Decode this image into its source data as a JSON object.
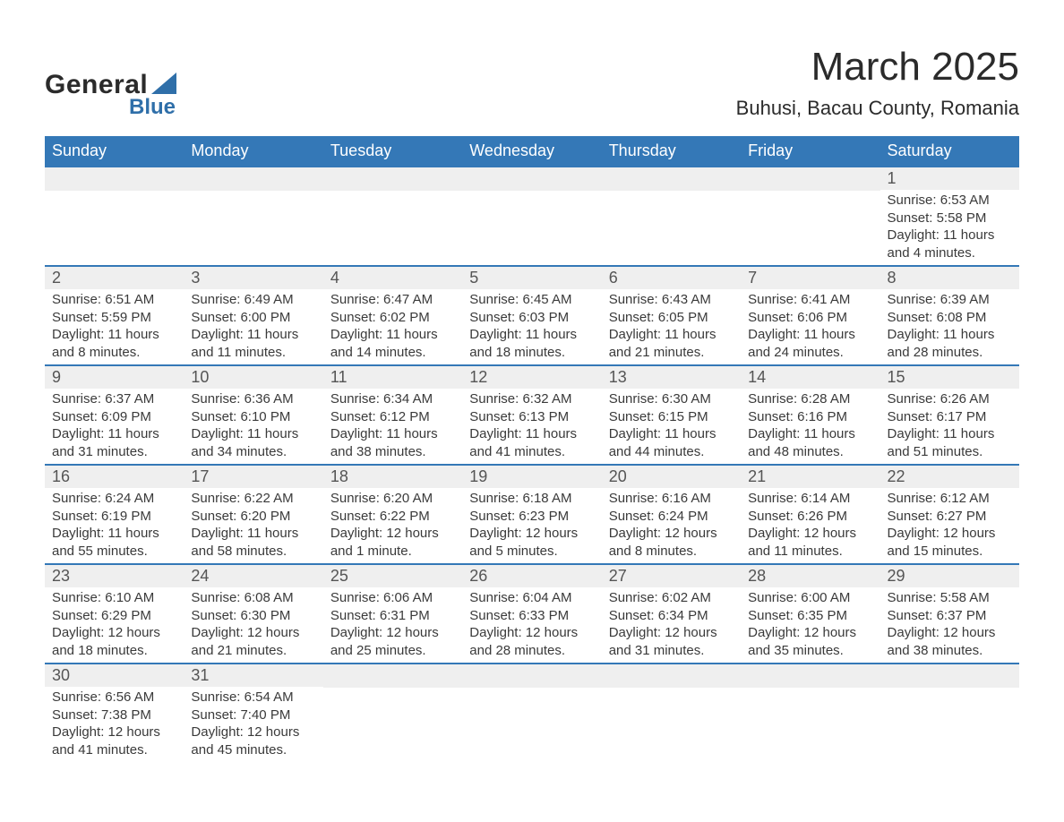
{
  "brand": {
    "text1": "General",
    "text2": "Blue",
    "triangle_color": "#2f6fa9"
  },
  "title": "March 2025",
  "location": "Buhusi, Bacau County, Romania",
  "weekdays": [
    "Sunday",
    "Monday",
    "Tuesday",
    "Wednesday",
    "Thursday",
    "Friday",
    "Saturday"
  ],
  "colors": {
    "header_bg": "#3478b7",
    "header_text": "#ffffff",
    "row_divider": "#3478b7",
    "daynum_bg": "#efefef",
    "text": "#3a3a3a"
  },
  "weeks": [
    [
      null,
      null,
      null,
      null,
      null,
      null,
      {
        "n": "1",
        "sunrise": "Sunrise: 6:53 AM",
        "sunset": "Sunset: 5:58 PM",
        "day1": "Daylight: 11 hours",
        "day2": "and 4 minutes."
      }
    ],
    [
      {
        "n": "2",
        "sunrise": "Sunrise: 6:51 AM",
        "sunset": "Sunset: 5:59 PM",
        "day1": "Daylight: 11 hours",
        "day2": "and 8 minutes."
      },
      {
        "n": "3",
        "sunrise": "Sunrise: 6:49 AM",
        "sunset": "Sunset: 6:00 PM",
        "day1": "Daylight: 11 hours",
        "day2": "and 11 minutes."
      },
      {
        "n": "4",
        "sunrise": "Sunrise: 6:47 AM",
        "sunset": "Sunset: 6:02 PM",
        "day1": "Daylight: 11 hours",
        "day2": "and 14 minutes."
      },
      {
        "n": "5",
        "sunrise": "Sunrise: 6:45 AM",
        "sunset": "Sunset: 6:03 PM",
        "day1": "Daylight: 11 hours",
        "day2": "and 18 minutes."
      },
      {
        "n": "6",
        "sunrise": "Sunrise: 6:43 AM",
        "sunset": "Sunset: 6:05 PM",
        "day1": "Daylight: 11 hours",
        "day2": "and 21 minutes."
      },
      {
        "n": "7",
        "sunrise": "Sunrise: 6:41 AM",
        "sunset": "Sunset: 6:06 PM",
        "day1": "Daylight: 11 hours",
        "day2": "and 24 minutes."
      },
      {
        "n": "8",
        "sunrise": "Sunrise: 6:39 AM",
        "sunset": "Sunset: 6:08 PM",
        "day1": "Daylight: 11 hours",
        "day2": "and 28 minutes."
      }
    ],
    [
      {
        "n": "9",
        "sunrise": "Sunrise: 6:37 AM",
        "sunset": "Sunset: 6:09 PM",
        "day1": "Daylight: 11 hours",
        "day2": "and 31 minutes."
      },
      {
        "n": "10",
        "sunrise": "Sunrise: 6:36 AM",
        "sunset": "Sunset: 6:10 PM",
        "day1": "Daylight: 11 hours",
        "day2": "and 34 minutes."
      },
      {
        "n": "11",
        "sunrise": "Sunrise: 6:34 AM",
        "sunset": "Sunset: 6:12 PM",
        "day1": "Daylight: 11 hours",
        "day2": "and 38 minutes."
      },
      {
        "n": "12",
        "sunrise": "Sunrise: 6:32 AM",
        "sunset": "Sunset: 6:13 PM",
        "day1": "Daylight: 11 hours",
        "day2": "and 41 minutes."
      },
      {
        "n": "13",
        "sunrise": "Sunrise: 6:30 AM",
        "sunset": "Sunset: 6:15 PM",
        "day1": "Daylight: 11 hours",
        "day2": "and 44 minutes."
      },
      {
        "n": "14",
        "sunrise": "Sunrise: 6:28 AM",
        "sunset": "Sunset: 6:16 PM",
        "day1": "Daylight: 11 hours",
        "day2": "and 48 minutes."
      },
      {
        "n": "15",
        "sunrise": "Sunrise: 6:26 AM",
        "sunset": "Sunset: 6:17 PM",
        "day1": "Daylight: 11 hours",
        "day2": "and 51 minutes."
      }
    ],
    [
      {
        "n": "16",
        "sunrise": "Sunrise: 6:24 AM",
        "sunset": "Sunset: 6:19 PM",
        "day1": "Daylight: 11 hours",
        "day2": "and 55 minutes."
      },
      {
        "n": "17",
        "sunrise": "Sunrise: 6:22 AM",
        "sunset": "Sunset: 6:20 PM",
        "day1": "Daylight: 11 hours",
        "day2": "and 58 minutes."
      },
      {
        "n": "18",
        "sunrise": "Sunrise: 6:20 AM",
        "sunset": "Sunset: 6:22 PM",
        "day1": "Daylight: 12 hours",
        "day2": "and 1 minute."
      },
      {
        "n": "19",
        "sunrise": "Sunrise: 6:18 AM",
        "sunset": "Sunset: 6:23 PM",
        "day1": "Daylight: 12 hours",
        "day2": "and 5 minutes."
      },
      {
        "n": "20",
        "sunrise": "Sunrise: 6:16 AM",
        "sunset": "Sunset: 6:24 PM",
        "day1": "Daylight: 12 hours",
        "day2": "and 8 minutes."
      },
      {
        "n": "21",
        "sunrise": "Sunrise: 6:14 AM",
        "sunset": "Sunset: 6:26 PM",
        "day1": "Daylight: 12 hours",
        "day2": "and 11 minutes."
      },
      {
        "n": "22",
        "sunrise": "Sunrise: 6:12 AM",
        "sunset": "Sunset: 6:27 PM",
        "day1": "Daylight: 12 hours",
        "day2": "and 15 minutes."
      }
    ],
    [
      {
        "n": "23",
        "sunrise": "Sunrise: 6:10 AM",
        "sunset": "Sunset: 6:29 PM",
        "day1": "Daylight: 12 hours",
        "day2": "and 18 minutes."
      },
      {
        "n": "24",
        "sunrise": "Sunrise: 6:08 AM",
        "sunset": "Sunset: 6:30 PM",
        "day1": "Daylight: 12 hours",
        "day2": "and 21 minutes."
      },
      {
        "n": "25",
        "sunrise": "Sunrise: 6:06 AM",
        "sunset": "Sunset: 6:31 PM",
        "day1": "Daylight: 12 hours}",
        "day2": "and 25 minutes."
      },
      {
        "n": "26",
        "sunrise": "Sunrise: 6:04 AM",
        "sunset": "Sunset: 6:33 PM",
        "day1": "Daylight: 12 hours",
        "day2": "and 28 minutes."
      },
      {
        "n": "27",
        "sunrise": "Sunrise: 6:02 AM",
        "sunset": "Sunset: 6:34 PM",
        "day1": "Daylight: 12 hours",
        "day2": "and 31 minutes."
      },
      {
        "n": "28",
        "sunrise": "Sunrise: 6:00 AM",
        "sunset": "Sunset: 6:35 PM",
        "day1": "Daylight: 12 hours",
        "day2": "and 35 minutes."
      },
      {
        "n": "29",
        "sunrise": "Sunrise: 5:58 AM",
        "sunset": "Sunset: 6:37 PM",
        "day1": "Daylight: 12 hours",
        "day2": "and 38 minutes."
      }
    ],
    [
      {
        "n": "30",
        "sunrise": "Sunrise: 6:56 AM",
        "sunset": "Sunset: 7:38 PM",
        "day1": "Daylight: 12 hours",
        "day2": "and 41 minutes."
      },
      {
        "n": "31",
        "sunrise": "Sunrise: 6:54 AM",
        "sunset": "Sunset: 7:40 PM",
        "day1": "Daylight: 12 hours",
        "day2": "and 45 minutes."
      },
      null,
      null,
      null,
      null,
      null
    ]
  ],
  "fix": {
    "w4d2_day1": "Daylight: 12 hours"
  }
}
